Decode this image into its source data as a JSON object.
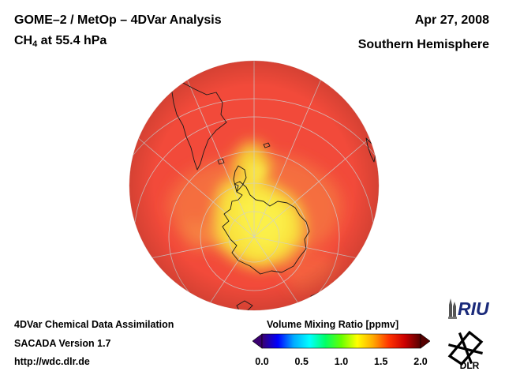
{
  "header": {
    "title_line1": "GOME–2 / MetOp – 4DVar Analysis",
    "species": "CH",
    "species_sub": "4",
    "species_level": " at 55.4 hPa",
    "date": "Apr 27, 2008",
    "region": "Southern Hemisphere"
  },
  "footer": {
    "line1": "4DVar Chemical Data Assimilation",
    "line2": "SACADA Version 1.7",
    "line3": "http://wdc.dlr.de"
  },
  "colorbar": {
    "title": "Volume Mixing Ratio [ppmv]",
    "min": 0.0,
    "max": 2.0,
    "ticks": [
      "0.0",
      "0.5",
      "1.0",
      "1.5",
      "2.0"
    ],
    "colors": [
      "#3a0070",
      "#0000ff",
      "#00aaff",
      "#00ffff",
      "#00ff66",
      "#66ff00",
      "#ffff00",
      "#ffaa00",
      "#ff3300",
      "#cc0000",
      "#550000"
    ]
  },
  "map": {
    "projection": "orthographic",
    "hemisphere": "south",
    "background_color": "#f24a3a",
    "high_region_color": "#f8e63a"
  },
  "logos": {
    "riu": "RIU",
    "dlr": "DLR"
  }
}
